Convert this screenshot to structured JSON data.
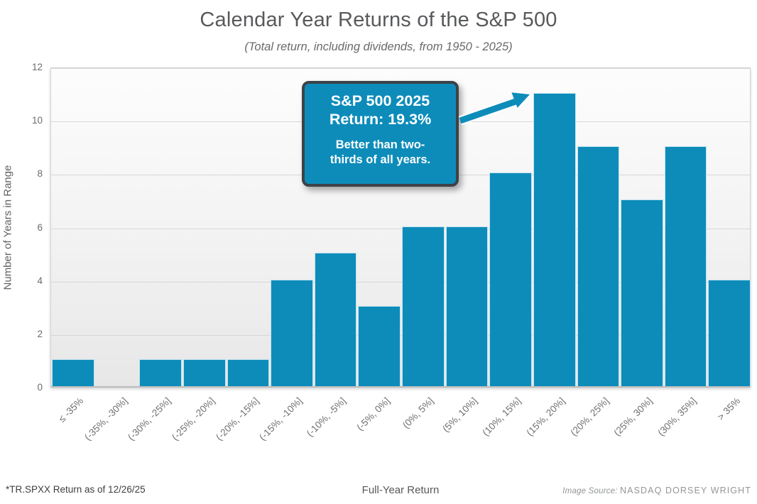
{
  "header": {
    "title": "Calendar Year Returns of the S&P 500",
    "subtitle": "(Total return, including dividends, from 1950 - 2025)"
  },
  "chart_data": {
    "type": "bar",
    "title": "Calendar Year Returns of the S&P 500",
    "subtitle": "(Total return, including dividends, from 1950 - 2025)",
    "categories": [
      "≤ -35%",
      "(-35%, -30%]",
      "(-30%, -25%]",
      "(-25%, -20%]",
      "(-20%, -15%]",
      "(-15%, -10%]",
      "(-10%, -5%]",
      "(-5%, 0%]",
      "(0%, 5%]",
      "(5%, 10%]",
      "(10%, 15%]",
      "(15%, 20%]",
      "(20%, 25%]",
      "(25%, 30%]",
      "(30%, 35%]",
      "> 35%"
    ],
    "values": [
      1,
      0,
      1,
      1,
      1,
      4,
      5,
      3,
      6,
      6,
      8,
      11,
      9,
      7,
      9,
      4
    ],
    "xlabel": "Full-Year Return",
    "ylabel": "Number of Years in Range",
    "ylim": [
      0,
      12
    ],
    "yticks": [
      0,
      2,
      4,
      6,
      8,
      10,
      12
    ],
    "grid": true,
    "legend": "none",
    "bar_color": "#0d8cba",
    "annotation": {
      "head_line1": "S&P 500 2025",
      "head_line2": "Return: 19.3%",
      "body_line1": "Better than two-",
      "body_line2": "thirds of all years.",
      "points_to_category": "(15%, 20%]",
      "points_to_value": 11,
      "box_color": "#0d8cba",
      "border_color": "#3d4247"
    }
  },
  "footer": {
    "note": "*TR.SPXX Return as of 12/26/25",
    "source_prefix": "Image Source:",
    "source_name": "NASDAQ DORSEY WRIGHT"
  }
}
